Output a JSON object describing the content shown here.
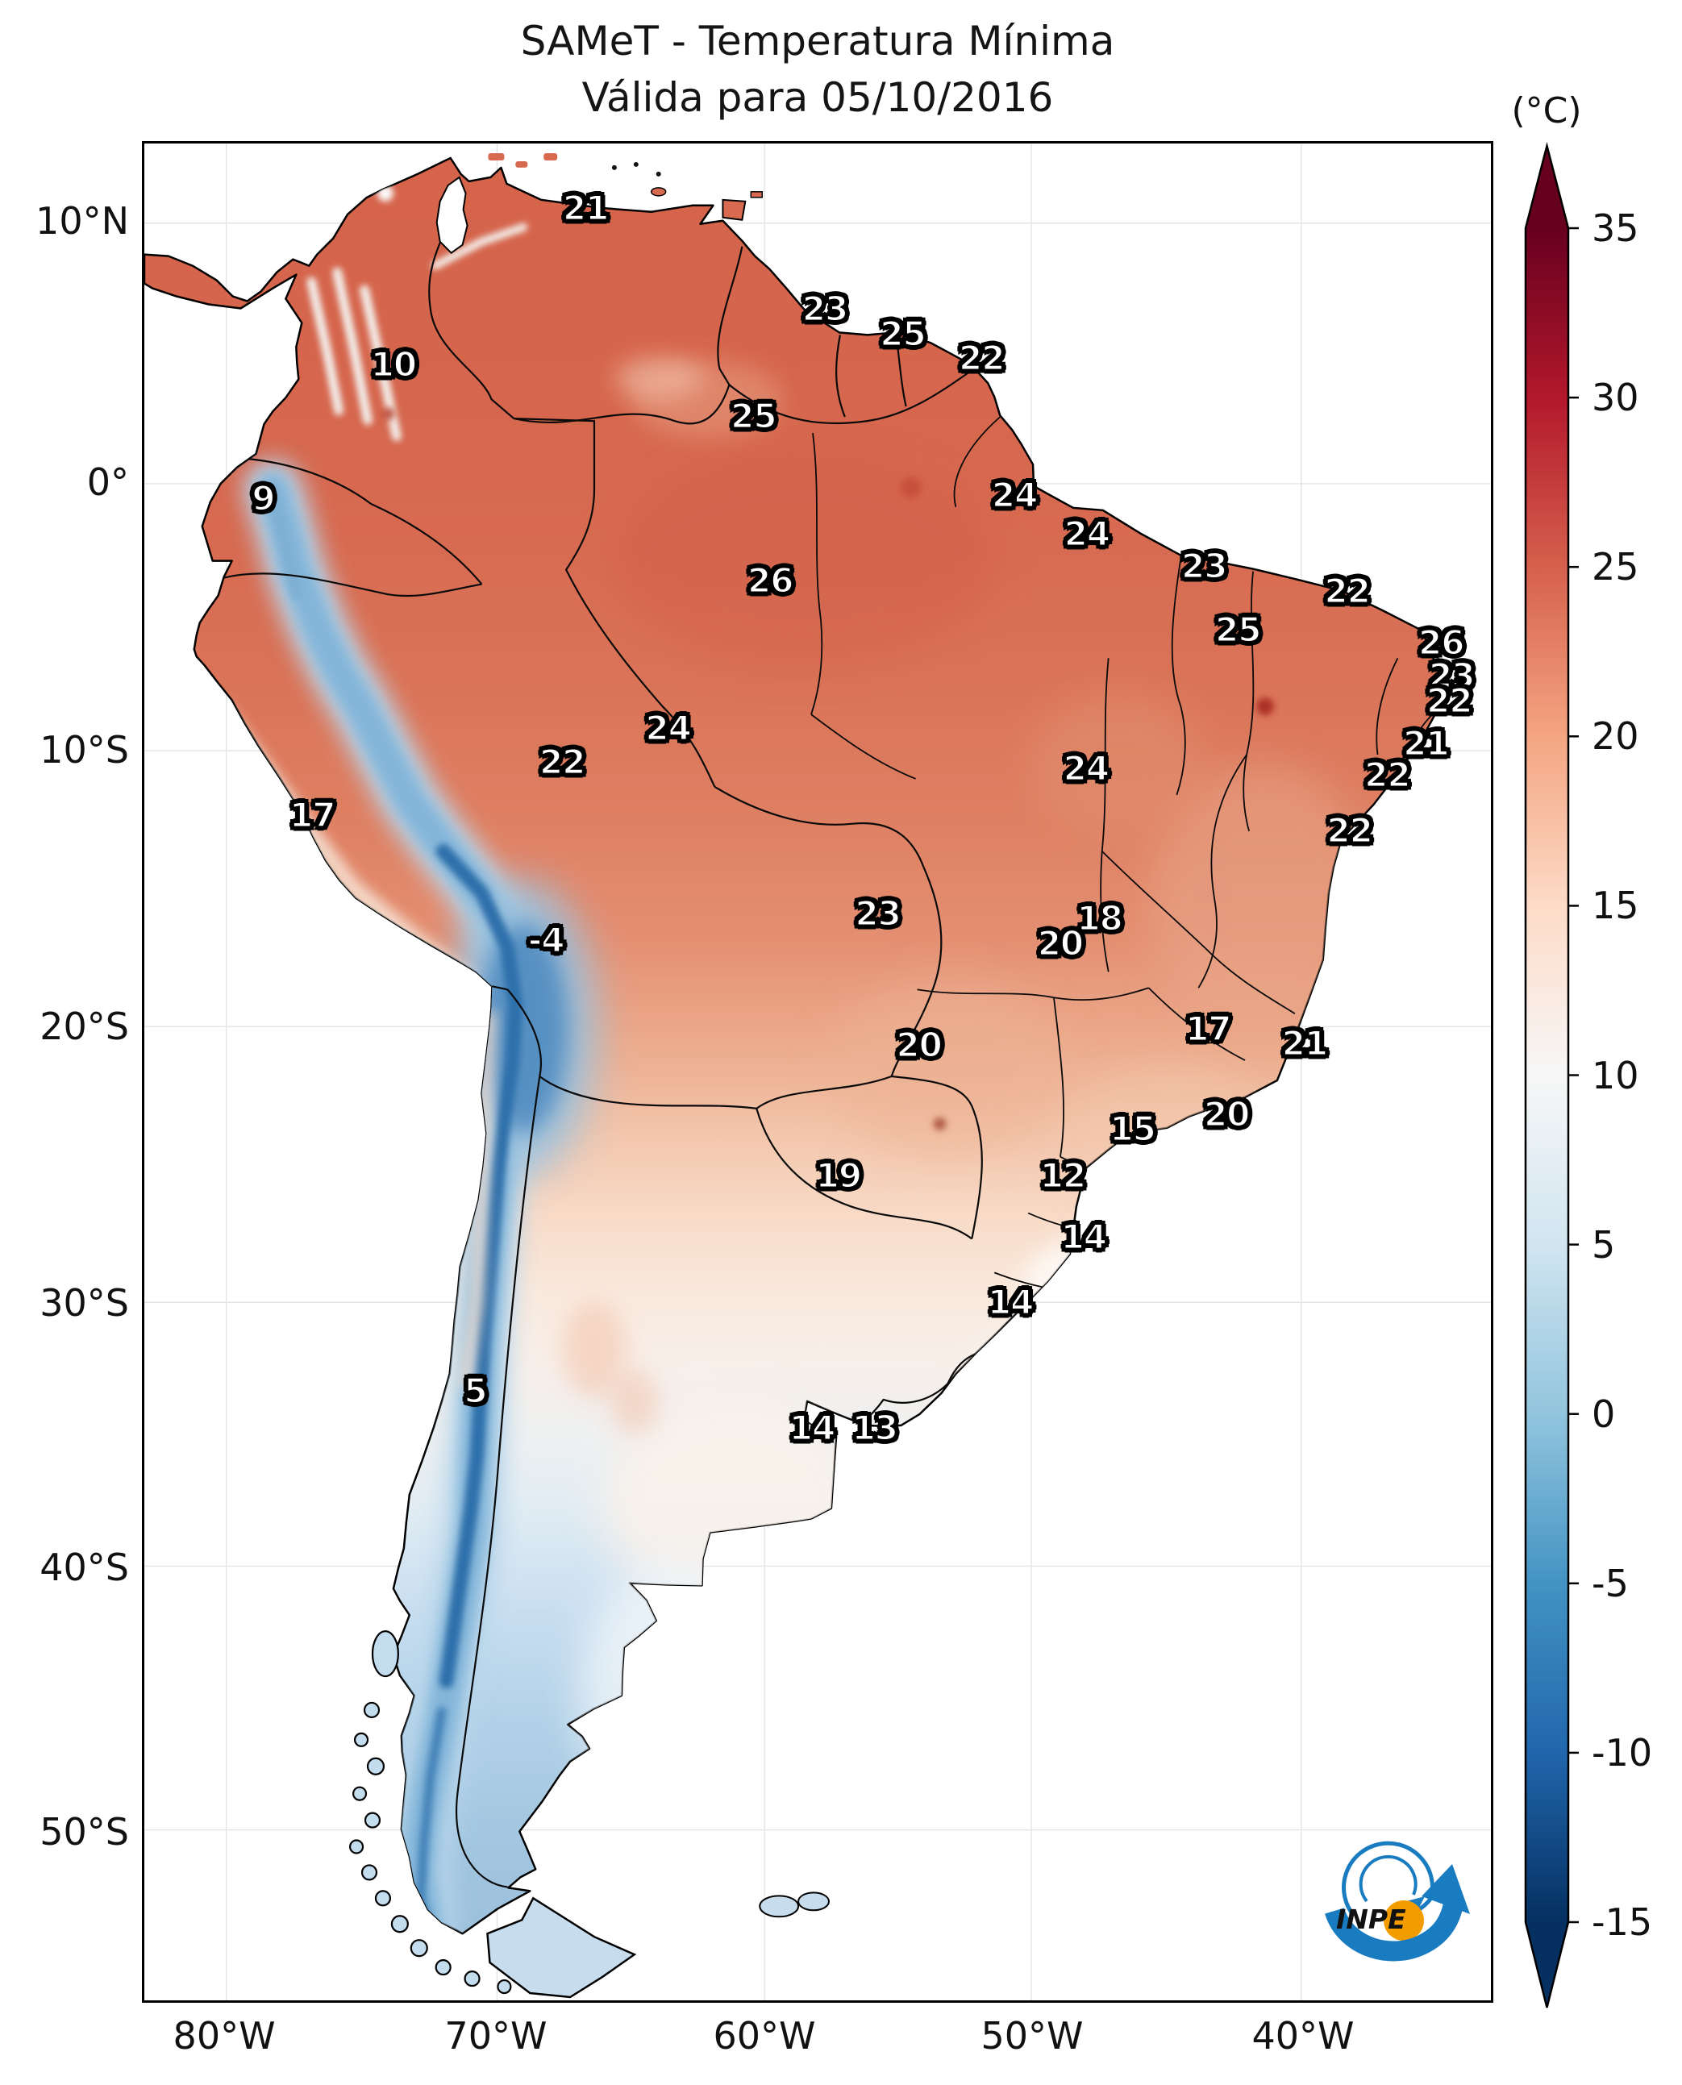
{
  "chart_data": {
    "type": "heatmap",
    "title": "SAMeT - Temperatura Mínima",
    "subtitle": "Válida para 05/10/2016",
    "unit_label": "(°C)",
    "colormap": "RdBu_r",
    "colorbar": {
      "vmax": 35,
      "vmin": -15,
      "tick_step": 5,
      "extend": "both",
      "ticks": [
        "35",
        "30",
        "25",
        "20",
        "15",
        "10",
        "5",
        "0",
        "-5",
        "-10",
        "-15"
      ],
      "colors": [
        "#67001f",
        "#b2182b",
        "#d6604d",
        "#f4a582",
        "#fddbc7",
        "#f7f7f7",
        "#d1e5f0",
        "#92c5de",
        "#4393c3",
        "#2166ac",
        "#053061"
      ]
    },
    "lat_ticks": [
      {
        "label": "10°N",
        "pos": 4.29
      },
      {
        "label": "0°",
        "pos": 18.32
      },
      {
        "label": "10°S",
        "pos": 32.7
      },
      {
        "label": "20°S",
        "pos": 47.55
      },
      {
        "label": "30°S",
        "pos": 62.41
      },
      {
        "label": "40°S",
        "pos": 76.61
      },
      {
        "label": "50°S",
        "pos": 90.82
      }
    ],
    "lon_ticks": [
      {
        "label": "80°W",
        "pos": 6.09
      },
      {
        "label": "70°W",
        "pos": 26.19
      },
      {
        "label": "60°W",
        "pos": 46.06
      },
      {
        "label": "50°W",
        "pos": 65.87
      },
      {
        "label": "40°W",
        "pos": 85.92
      }
    ],
    "stations": [
      {
        "v": "21",
        "x": 32.76,
        "y": 3.46
      },
      {
        "v": "10",
        "x": 18.5,
        "y": 11.91
      },
      {
        "v": "23",
        "x": 50.54,
        "y": 8.88
      },
      {
        "v": "25",
        "x": 56.32,
        "y": 10.26
      },
      {
        "v": "22",
        "x": 62.17,
        "y": 11.56
      },
      {
        "v": "25",
        "x": 45.23,
        "y": 14.68
      },
      {
        "v": "9",
        "x": 8.83,
        "y": 19.1
      },
      {
        "v": "26",
        "x": 46.48,
        "y": 23.52
      },
      {
        "v": "24",
        "x": 64.62,
        "y": 18.93
      },
      {
        "v": "24",
        "x": 69.99,
        "y": 21.0
      },
      {
        "v": "23",
        "x": 78.7,
        "y": 22.74
      },
      {
        "v": "25",
        "x": 81.21,
        "y": 26.2
      },
      {
        "v": "22",
        "x": 89.32,
        "y": 24.12
      },
      {
        "v": "26",
        "x": 96.3,
        "y": 26.89
      },
      {
        "v": "23",
        "x": 97.08,
        "y": 28.67
      },
      {
        "v": "22",
        "x": 96.9,
        "y": 30.01
      },
      {
        "v": "24",
        "x": 38.9,
        "y": 31.49
      },
      {
        "v": "22",
        "x": 31.03,
        "y": 33.3
      },
      {
        "v": "24",
        "x": 69.93,
        "y": 33.65
      },
      {
        "v": "21",
        "x": 95.17,
        "y": 32.31
      },
      {
        "v": "22",
        "x": 92.3,
        "y": 34.0
      },
      {
        "v": "17",
        "x": 12.47,
        "y": 36.16
      },
      {
        "v": "22",
        "x": 89.5,
        "y": 36.99
      },
      {
        "v": "-4",
        "x": 29.83,
        "y": 42.88
      },
      {
        "v": "23",
        "x": 54.47,
        "y": 41.45
      },
      {
        "v": "18",
        "x": 70.94,
        "y": 41.71
      },
      {
        "v": "20",
        "x": 68.02,
        "y": 43.09
      },
      {
        "v": "20",
        "x": 57.52,
        "y": 48.55
      },
      {
        "v": "17",
        "x": 79.0,
        "y": 47.68
      },
      {
        "v": "21",
        "x": 86.16,
        "y": 48.46
      },
      {
        "v": "15",
        "x": 73.39,
        "y": 53.05
      },
      {
        "v": "20",
        "x": 80.37,
        "y": 52.27
      },
      {
        "v": "19",
        "x": 51.55,
        "y": 55.57
      },
      {
        "v": "12",
        "x": 68.2,
        "y": 55.57
      },
      {
        "v": "14",
        "x": 69.75,
        "y": 58.86
      },
      {
        "v": "14",
        "x": 64.32,
        "y": 62.41
      },
      {
        "v": "5",
        "x": 24.58,
        "y": 67.17
      },
      {
        "v": "14",
        "x": 49.58,
        "y": 69.16
      },
      {
        "v": "13",
        "x": 54.24,
        "y": 69.16
      }
    ]
  },
  "logo": {
    "text": "INPE"
  }
}
